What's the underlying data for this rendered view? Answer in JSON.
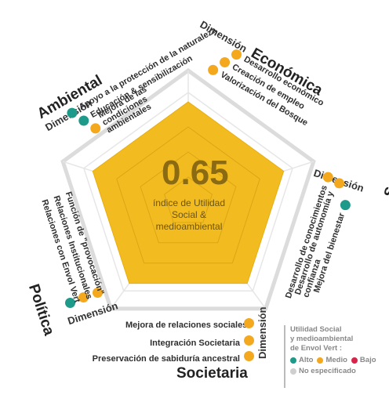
{
  "center": {
    "value": "0.65",
    "label_line1": "índice de Utilidad",
    "label_line2": "Social  &",
    "label_line3": "medioambiental"
  },
  "colors": {
    "alto": "#1e9a8a",
    "medio": "#f3a81e",
    "bajo": "#d8234a",
    "no_especificado": "#cfcfcf",
    "fill": "#f2bc21",
    "grid": "#e0e0e0"
  },
  "dimension_word": "Dimensión",
  "dimensions": {
    "economica": {
      "title": "Económica",
      "items": [
        "Desarrollo económico",
        "Creación de empleo",
        "Valorización del Bosque"
      ],
      "levels": [
        "medio",
        "medio",
        "medio"
      ]
    },
    "social": {
      "title": "Social",
      "items": [
        "Desarrollo de conocimientos",
        "Desarrollo de autonomía y confianza",
        "Mejora del bienestar"
      ],
      "levels": [
        "medio",
        "medio",
        "alto"
      ]
    },
    "societaria": {
      "title": "Societaria",
      "items": [
        "Mejora de relaciones sociales",
        "Integración Societaria",
        "Preservación de sabiduría ancestral"
      ],
      "levels": [
        "medio",
        "medio",
        "medio"
      ]
    },
    "politica": {
      "title": "Política",
      "items": [
        "Función de \"provocación\"",
        "Relaciones Institucionales",
        "Relaciones con Envol Vert"
      ],
      "levels": [
        "alto",
        "medio",
        "medio"
      ]
    },
    "ambiental": {
      "title": "Ambiental",
      "items": [
        "Apoyo a la protección de la naturaleza",
        "Educación & sensibilización",
        "Mejora de las condiciones ambientales"
      ],
      "levels": [
        "alto",
        "alto",
        "medio"
      ]
    }
  },
  "legend": {
    "title_line1": "Utilidad Social",
    "title_line2": "y medioambiental",
    "title_line3": "de Envol Vert :",
    "alto": "Alto",
    "medio": "Medio",
    "bajo": "Bajo",
    "no_especificado": "No especificado"
  }
}
